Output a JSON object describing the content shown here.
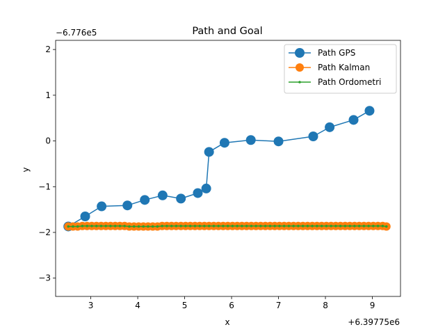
{
  "chart_data": {
    "type": "line",
    "title": "Path and Goal",
    "xlabel": "x",
    "ylabel": "y",
    "x_offset_label": "+6.39775e6",
    "y_offset_label": "−6.776e5",
    "xlim": [
      2.25,
      9.6
    ],
    "ylim": [
      -3.4,
      2.2
    ],
    "x_ticks": [
      3,
      4,
      5,
      6,
      7,
      8,
      9
    ],
    "x_tick_labels": [
      "3",
      "4",
      "5",
      "6",
      "7",
      "8",
      "9"
    ],
    "y_ticks": [
      -3,
      -2,
      -1,
      0,
      1,
      2
    ],
    "y_tick_labels": [
      "−3",
      "−2",
      "−1",
      "0",
      "1",
      "2"
    ],
    "grid": false,
    "legend_position": "upper-right",
    "series": [
      {
        "name": "Path GPS",
        "color": "#1f77b4",
        "marker": "circle-large",
        "x": [
          2.52,
          2.88,
          3.23,
          3.78,
          4.15,
          4.53,
          4.92,
          5.28,
          5.46,
          5.52,
          5.85,
          6.41,
          7.0,
          7.74,
          8.09,
          8.6,
          8.94
        ],
        "y": [
          -1.87,
          -1.65,
          -1.43,
          -1.41,
          -1.29,
          -1.19,
          -1.26,
          -1.14,
          -1.04,
          -0.24,
          -0.04,
          0.02,
          -0.01,
          0.1,
          0.3,
          0.46,
          0.66
        ]
      },
      {
        "name": "Path Kalman",
        "color": "#ff7f0e",
        "marker": "circle-medium",
        "x": [
          2.52,
          2.62,
          2.72,
          2.82,
          2.92,
          3.02,
          3.12,
          3.22,
          3.32,
          3.42,
          3.52,
          3.62,
          3.72,
          3.82,
          3.92,
          4.02,
          4.12,
          4.22,
          4.32,
          4.42,
          4.52,
          4.62,
          4.72,
          4.82,
          4.92,
          5.02,
          5.12,
          5.22,
          5.32,
          5.42,
          5.52,
          5.62,
          5.72,
          5.82,
          5.92,
          6.02,
          6.12,
          6.22,
          6.32,
          6.42,
          6.52,
          6.62,
          6.72,
          6.82,
          6.92,
          7.02,
          7.12,
          7.22,
          7.32,
          7.42,
          7.52,
          7.62,
          7.72,
          7.82,
          7.92,
          8.02,
          8.12,
          8.22,
          8.32,
          8.42,
          8.52,
          8.62,
          8.72,
          8.82,
          8.92,
          9.02,
          9.12,
          9.22,
          9.3
        ],
        "y": [
          -1.87,
          -1.87,
          -1.87,
          -1.86,
          -1.86,
          -1.86,
          -1.86,
          -1.86,
          -1.86,
          -1.86,
          -1.86,
          -1.86,
          -1.86,
          -1.87,
          -1.87,
          -1.87,
          -1.87,
          -1.87,
          -1.87,
          -1.87,
          -1.86,
          -1.86,
          -1.86,
          -1.86,
          -1.86,
          -1.86,
          -1.86,
          -1.86,
          -1.86,
          -1.86,
          -1.86,
          -1.86,
          -1.86,
          -1.86,
          -1.86,
          -1.86,
          -1.86,
          -1.86,
          -1.86,
          -1.86,
          -1.86,
          -1.86,
          -1.86,
          -1.86,
          -1.86,
          -1.86,
          -1.86,
          -1.86,
          -1.86,
          -1.86,
          -1.86,
          -1.86,
          -1.86,
          -1.86,
          -1.86,
          -1.86,
          -1.86,
          -1.86,
          -1.86,
          -1.86,
          -1.86,
          -1.86,
          -1.86,
          -1.86,
          -1.86,
          -1.86,
          -1.86,
          -1.86,
          -1.87
        ]
      },
      {
        "name": "Path Ordometri",
        "color": "#2ca02c",
        "marker": "point-small",
        "x": [
          2.52,
          2.62,
          2.72,
          2.82,
          2.92,
          3.02,
          3.12,
          3.22,
          3.32,
          3.42,
          3.52,
          3.62,
          3.72,
          3.82,
          3.92,
          4.02,
          4.12,
          4.22,
          4.32,
          4.42,
          4.52,
          4.62,
          4.72,
          4.82,
          4.92,
          5.02,
          5.12,
          5.22,
          5.32,
          5.42,
          5.52,
          5.62,
          5.72,
          5.82,
          5.92,
          6.02,
          6.12,
          6.22,
          6.32,
          6.42,
          6.52,
          6.62,
          6.72,
          6.82,
          6.92,
          7.02,
          7.12,
          7.22,
          7.32,
          7.42,
          7.52,
          7.62,
          7.72,
          7.82,
          7.92,
          8.02,
          8.12,
          8.22,
          8.32,
          8.42,
          8.52,
          8.62,
          8.72,
          8.82,
          8.92,
          9.02,
          9.12,
          9.22,
          9.3
        ],
        "y": [
          -1.87,
          -1.87,
          -1.87,
          -1.86,
          -1.86,
          -1.86,
          -1.86,
          -1.86,
          -1.86,
          -1.86,
          -1.86,
          -1.86,
          -1.86,
          -1.87,
          -1.87,
          -1.87,
          -1.87,
          -1.87,
          -1.87,
          -1.87,
          -1.86,
          -1.86,
          -1.86,
          -1.86,
          -1.86,
          -1.86,
          -1.86,
          -1.86,
          -1.86,
          -1.86,
          -1.86,
          -1.86,
          -1.86,
          -1.86,
          -1.86,
          -1.86,
          -1.86,
          -1.86,
          -1.86,
          -1.86,
          -1.86,
          -1.86,
          -1.86,
          -1.86,
          -1.86,
          -1.86,
          -1.86,
          -1.86,
          -1.86,
          -1.86,
          -1.86,
          -1.86,
          -1.86,
          -1.86,
          -1.86,
          -1.86,
          -1.86,
          -1.86,
          -1.86,
          -1.86,
          -1.86,
          -1.86,
          -1.86,
          -1.86,
          -1.86,
          -1.86,
          -1.86,
          -1.86,
          -1.87
        ]
      }
    ]
  }
}
